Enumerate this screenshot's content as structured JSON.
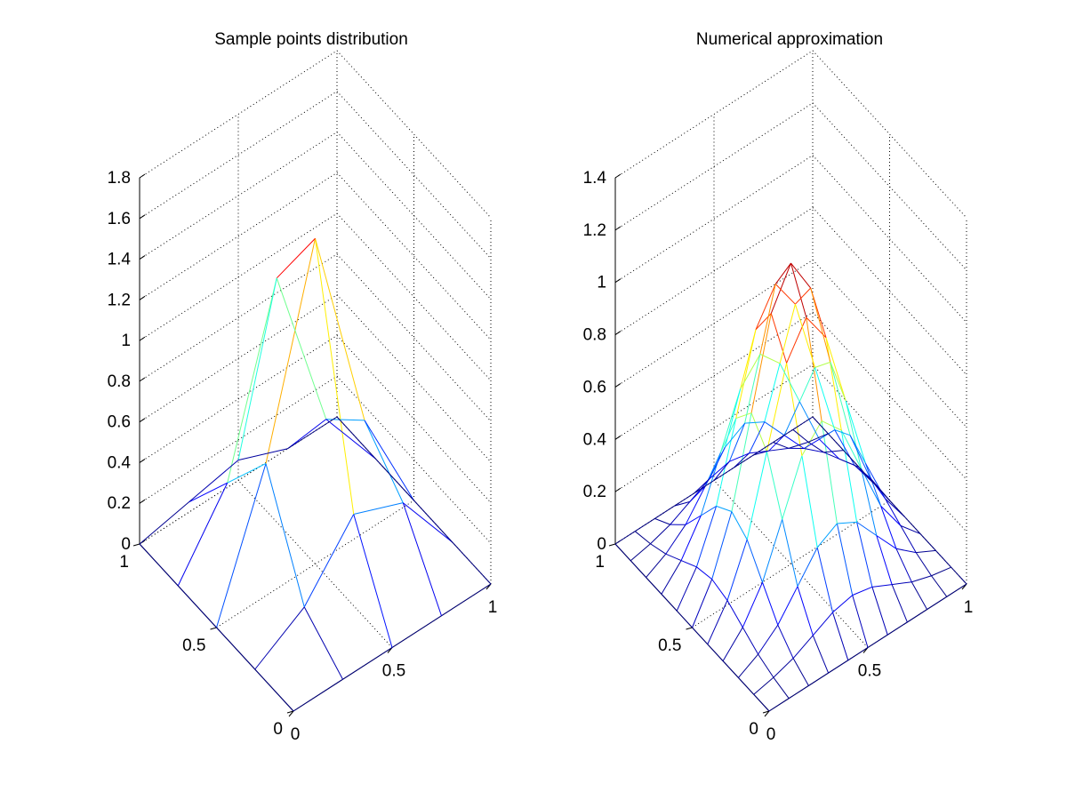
{
  "chart_data": [
    {
      "type": "surface-mesh",
      "title": "Sample points distribution",
      "x_ticks": [
        "0",
        "0.5",
        "1"
      ],
      "y_ticks": [
        "0",
        "0.5",
        "1"
      ],
      "z_ticks": [
        "0",
        "0.2",
        "0.4",
        "0.6",
        "0.8",
        "1",
        "1.2",
        "1.4",
        "1.6",
        "1.8"
      ],
      "xlim": [
        0,
        1
      ],
      "ylim": [
        0,
        1
      ],
      "zlim": [
        0,
        1.8
      ],
      "grid": true,
      "colormap": "jet",
      "x": [
        0,
        0.25,
        0.5,
        0.75,
        1
      ],
      "y": [
        0,
        0.25,
        0.5,
        0.75,
        1
      ],
      "z": [
        [
          0,
          0,
          0,
          0,
          0
        ],
        [
          0,
          0.15,
          0.45,
          0.35,
          0
        ],
        [
          0,
          0.65,
          1.6,
          0.55,
          0
        ],
        [
          0,
          0.35,
          1.2,
          0.35,
          0
        ],
        [
          0,
          0.05,
          0.1,
          0,
          0
        ]
      ]
    },
    {
      "type": "surface-mesh",
      "title": "Numerical approximation",
      "x_ticks": [
        "0",
        "0.5",
        "1"
      ],
      "y_ticks": [
        "0",
        "0.5",
        "1"
      ],
      "z_ticks": [
        "0",
        "0.2",
        "0.4",
        "0.6",
        "0.8",
        "1",
        "1.2",
        "1.4"
      ],
      "xlim": [
        0,
        1
      ],
      "ylim": [
        0,
        1
      ],
      "zlim": [
        0,
        1.4
      ],
      "grid": true,
      "colormap": "jet",
      "x": [
        0,
        0.1,
        0.2,
        0.3,
        0.4,
        0.5,
        0.6,
        0.7,
        0.8,
        0.9,
        1
      ],
      "y": [
        0,
        0.1,
        0.2,
        0.3,
        0.4,
        0.5,
        0.6,
        0.7,
        0.8,
        0.9,
        1
      ],
      "z_function": "1.15 * exp(-((x-0.5)^2 + (y-0.5)^2) / 0.075), zero on boundary"
    }
  ]
}
